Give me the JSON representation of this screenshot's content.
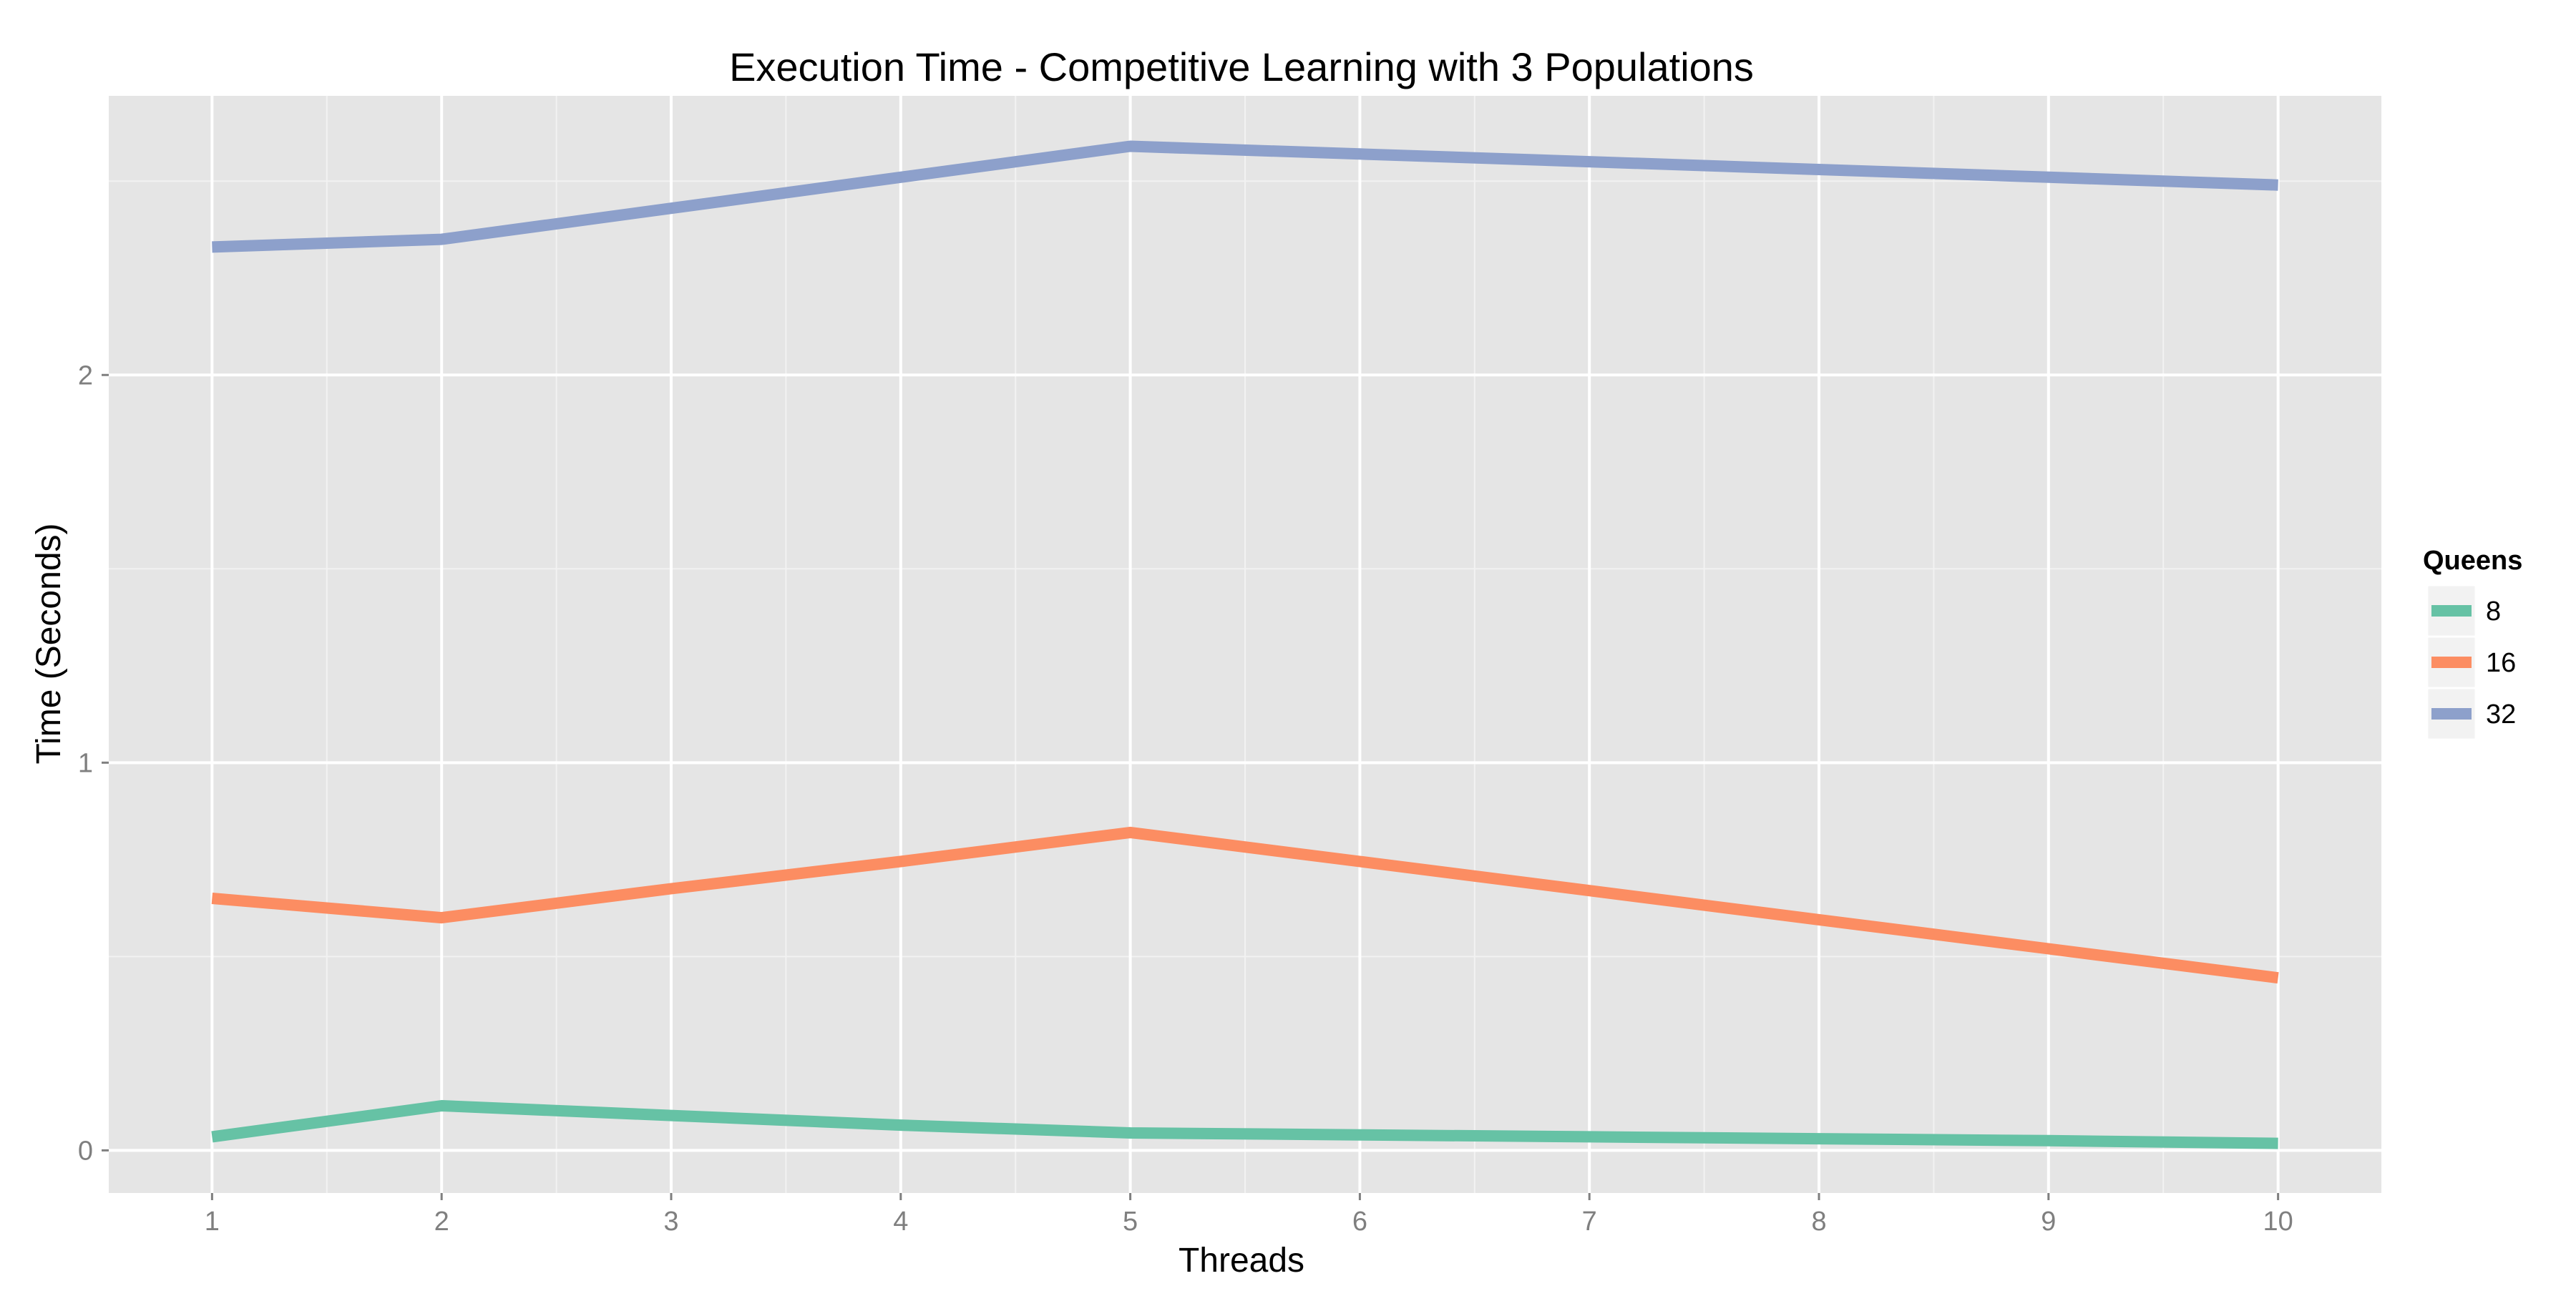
{
  "chart_data": {
    "type": "line",
    "title": "Execution Time - Competitive Learning with 3 Populations",
    "xlabel": "Threads",
    "ylabel": "Time (Seconds)",
    "x": [
      1,
      2,
      3,
      4,
      5,
      6,
      7,
      8,
      9,
      10
    ],
    "xlim": [
      0.55,
      10.45
    ],
    "ylim": [
      -0.11,
      2.72
    ],
    "x_ticks": [
      1,
      2,
      3,
      4,
      5,
      6,
      7,
      8,
      9,
      10
    ],
    "y_ticks": [
      0,
      1,
      2
    ],
    "grid": true,
    "legend_title": "Queens",
    "legend_position": "right",
    "series": [
      {
        "name": "8",
        "color": "#66c2a5",
        "values": [
          0.035,
          0.115,
          0.09,
          0.065,
          0.045,
          0.04,
          0.035,
          0.03,
          0.025,
          0.018
        ]
      },
      {
        "name": "16",
        "color": "#fc8d62",
        "values": [
          0.65,
          0.6,
          0.675,
          0.745,
          0.82,
          0.745,
          0.67,
          0.595,
          0.52,
          0.445
        ]
      },
      {
        "name": "32",
        "color": "#8da0cb",
        "values": [
          2.33,
          2.35,
          2.43,
          2.51,
          2.59,
          2.57,
          2.55,
          2.53,
          2.51,
          2.49
        ]
      }
    ]
  }
}
